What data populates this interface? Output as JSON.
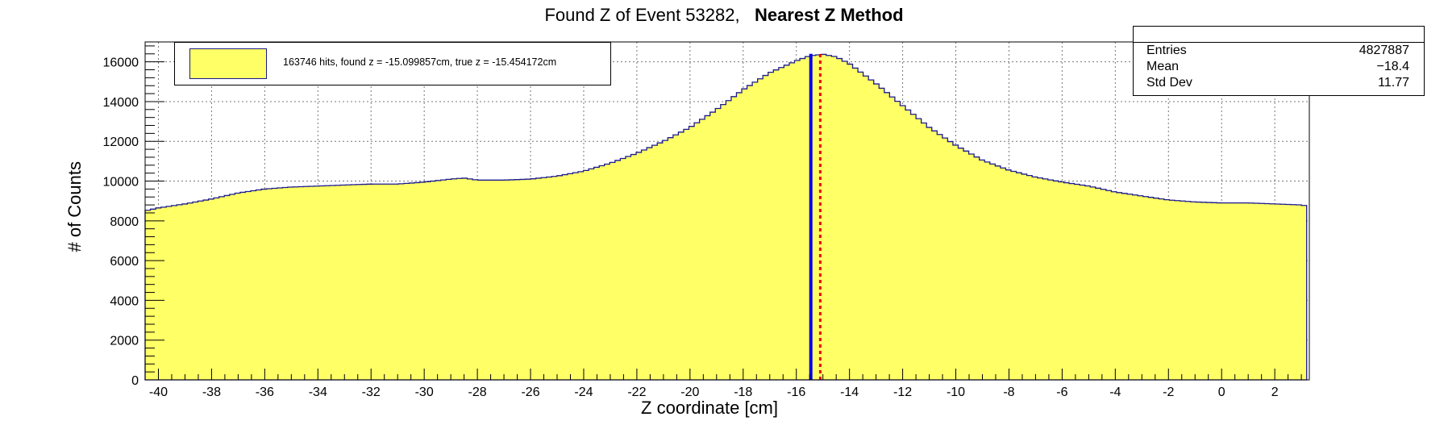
{
  "title": {
    "main": "Found Z of Event 53282,",
    "method": "Nearest Z Method"
  },
  "stats": {
    "entries_label": "Entries",
    "entries_value": "4827887",
    "mean_label": "Mean",
    "mean_value": "−18.4",
    "stddev_label": "Std Dev",
    "stddev_value": "11.77"
  },
  "legend": {
    "entry": "163746 hits, found z = -15.099857cm, true z = -15.454172cm"
  },
  "colors": {
    "fill": "#ffff66",
    "outline": "#1a1a8c",
    "found_line": "#0000ee",
    "true_line": "#ee0000"
  },
  "chart_data": {
    "type": "bar",
    "histogram": true,
    "xlabel": "Z coordinate [cm]",
    "ylabel": "# of Counts",
    "xlim": [
      -40.5,
      3.3
    ],
    "ylim": [
      0,
      17000
    ],
    "x_ticks": [
      -40,
      -38,
      -36,
      -34,
      -32,
      -30,
      -28,
      -26,
      -24,
      -22,
      -20,
      -18,
      -16,
      -14,
      -12,
      -10,
      -8,
      -6,
      -4,
      -2,
      0,
      2
    ],
    "y_ticks": [
      0,
      2000,
      4000,
      6000,
      8000,
      10000,
      12000,
      14000,
      16000
    ],
    "grid": true,
    "series": [
      {
        "x": [
          -40.5,
          -40,
          -39,
          -38,
          -37,
          -36,
          -35,
          -34,
          -33,
          -32,
          -31,
          -30,
          -29,
          -28.5,
          -28,
          -27,
          -26,
          -25,
          -24,
          -23,
          -22,
          -21,
          -20,
          -19,
          -18,
          -17,
          -16,
          -15.5,
          -15,
          -14.5,
          -14,
          -13,
          -12,
          -11,
          -10,
          -9,
          -8,
          -7,
          -6,
          -5,
          -4,
          -3,
          -2,
          -1,
          0,
          1,
          2,
          3,
          3.2
        ],
        "values": [
          8500,
          8650,
          8850,
          9100,
          9400,
          9600,
          9700,
          9750,
          9800,
          9850,
          9850,
          9950,
          10100,
          10150,
          10050,
          10050,
          10100,
          10250,
          10500,
          10900,
          11400,
          12000,
          12700,
          13600,
          14600,
          15450,
          16050,
          16300,
          16380,
          16250,
          15900,
          14900,
          13800,
          12700,
          11800,
          11050,
          10550,
          10200,
          9950,
          9750,
          9450,
          9250,
          9050,
          8950,
          8900,
          8900,
          8850,
          8800,
          8750
        ]
      }
    ],
    "annotations": [
      {
        "label": "found z",
        "x": -15.099857,
        "style": "dotted"
      },
      {
        "label": "true z",
        "x": -15.454172,
        "style": "solid"
      }
    ]
  }
}
